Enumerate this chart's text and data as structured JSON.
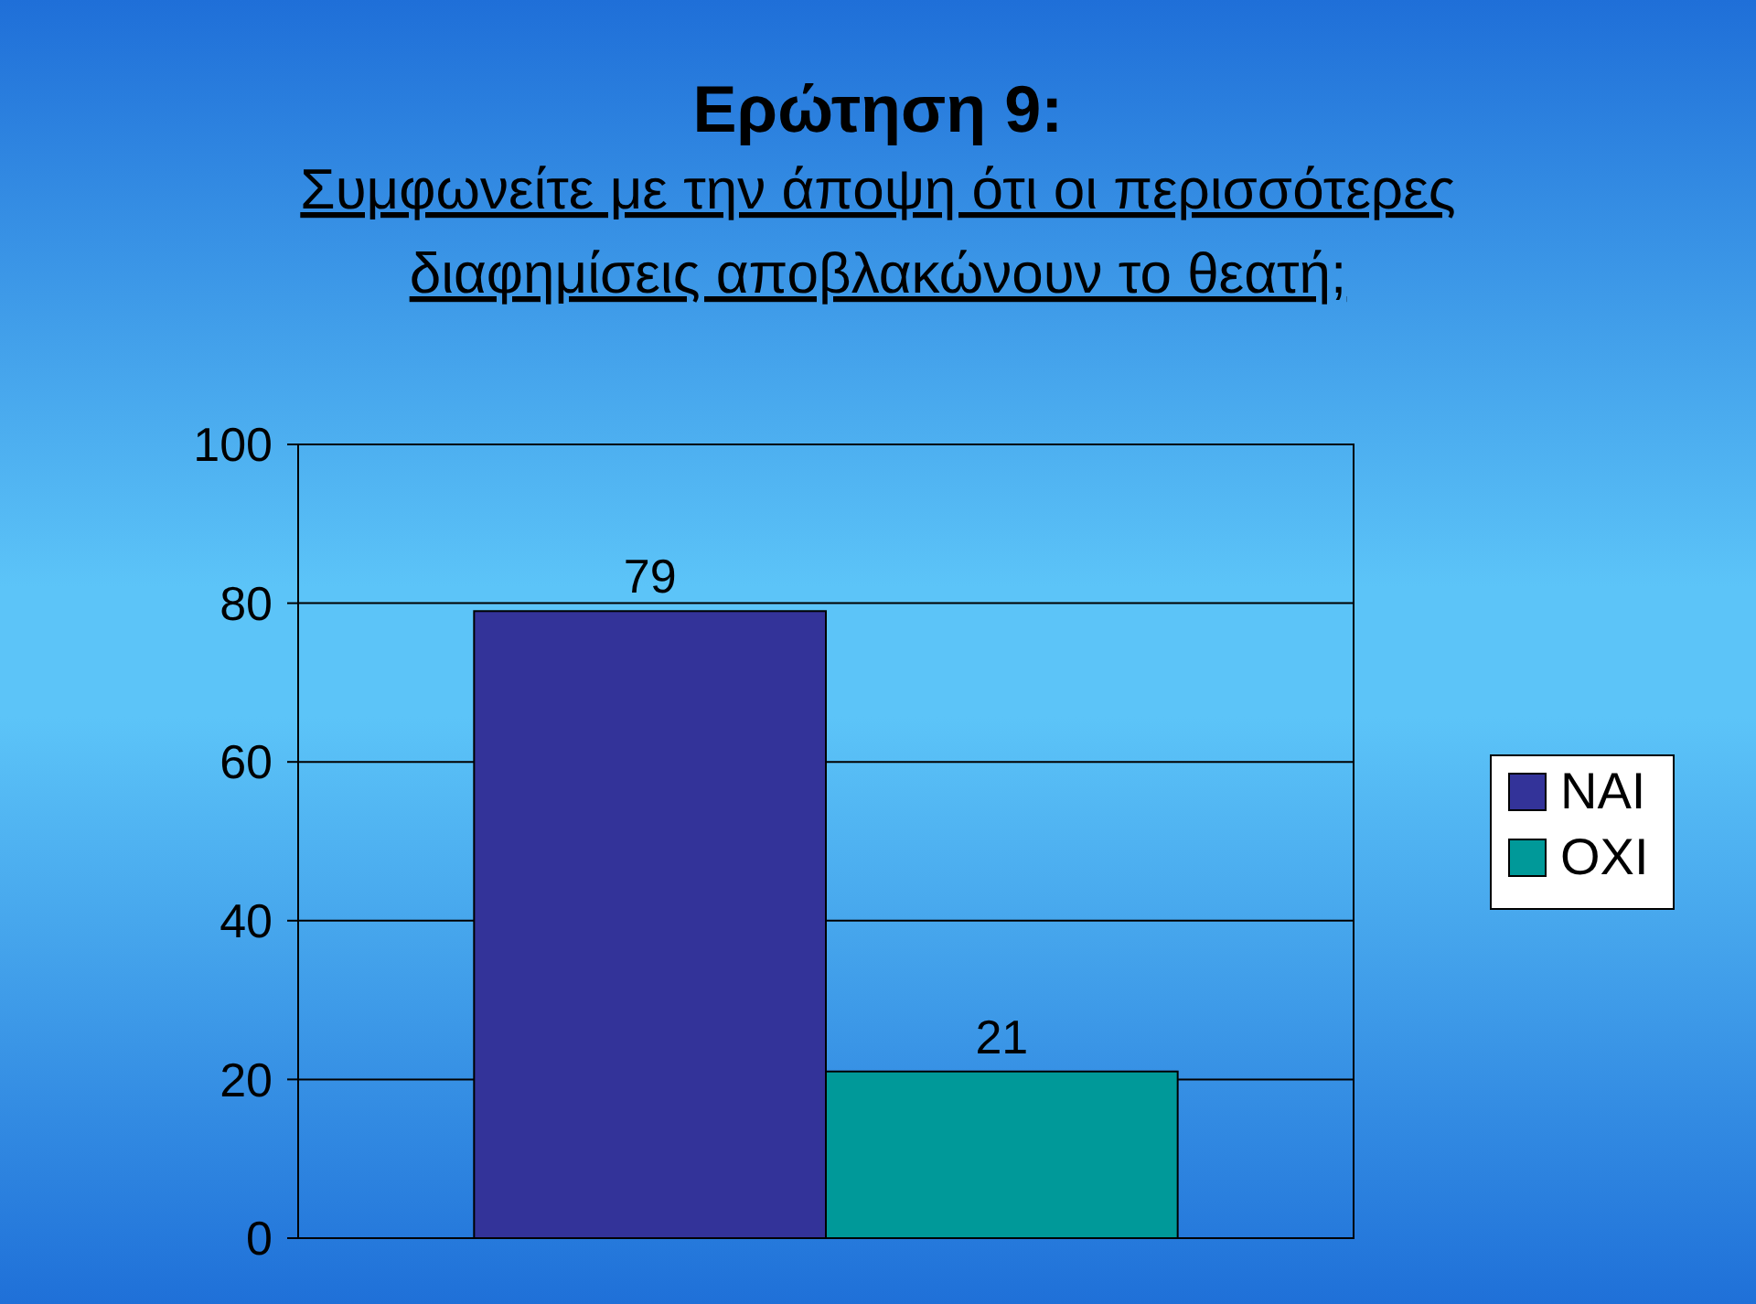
{
  "chart_data": {
    "type": "bar",
    "title": "Ερώτηση 9:",
    "subtitle": "Συμφωνείτε με την άποψη ότι οι περισσότερες διαφημίσεις αποβλακώνουν το θεατή;",
    "categories": [
      null
    ],
    "series": [
      {
        "name": "ΝΑΙ",
        "color": "#333399",
        "values": [
          79
        ]
      },
      {
        "name": "ΟΧΙ",
        "color": "#009999",
        "values": [
          21
        ]
      }
    ],
    "ylim": [
      0,
      100
    ],
    "yticks": [
      0,
      20,
      40,
      60,
      80,
      100
    ],
    "grid": "y",
    "legend": "right",
    "data_labels": true
  }
}
